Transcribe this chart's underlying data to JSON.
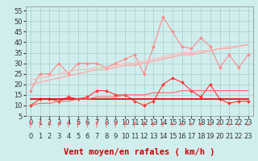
{
  "x": [
    0,
    1,
    2,
    3,
    4,
    5,
    6,
    7,
    8,
    9,
    10,
    11,
    12,
    13,
    14,
    15,
    16,
    17,
    18,
    19,
    20,
    21,
    22,
    23
  ],
  "series": [
    {
      "name": "rafales_main",
      "color": "#FF8888",
      "linewidth": 0.8,
      "marker": "D",
      "markersize": 2.0,
      "values": [
        17,
        25,
        25,
        30,
        25,
        30,
        30,
        30,
        28,
        30,
        32,
        34,
        25,
        38,
        52,
        45,
        38,
        37,
        42,
        38,
        28,
        34,
        28,
        34
      ]
    },
    {
      "name": "rafales_trend1",
      "color": "#FFBBBB",
      "linewidth": 1.0,
      "marker": null,
      "values": [
        22,
        23,
        24,
        25,
        26,
        27,
        27,
        28,
        28,
        29,
        30,
        30,
        31,
        32,
        33,
        34,
        35,
        35,
        36,
        36,
        37,
        38,
        38,
        39
      ]
    },
    {
      "name": "rafales_trend2",
      "color": "#FFAAAA",
      "linewidth": 1.0,
      "marker": null,
      "values": [
        20,
        21,
        22,
        23,
        24,
        25,
        26,
        27,
        27,
        28,
        29,
        29,
        30,
        31,
        32,
        33,
        34,
        34,
        35,
        36,
        37,
        37,
        38,
        39
      ]
    },
    {
      "name": "moyen_main",
      "color": "#FF3333",
      "linewidth": 0.8,
      "marker": "D",
      "markersize": 2.0,
      "values": [
        10,
        13,
        13,
        12,
        14,
        13,
        14,
        17,
        17,
        15,
        15,
        12,
        10,
        12,
        20,
        23,
        21,
        17,
        14,
        20,
        13,
        11,
        12,
        12
      ]
    },
    {
      "name": "moyen_flat",
      "color": "#DD0000",
      "linewidth": 1.2,
      "marker": null,
      "values": [
        13,
        13,
        13,
        13,
        13,
        13,
        13,
        13,
        13,
        13,
        13,
        13,
        13,
        13,
        13,
        13,
        13,
        13,
        13,
        13,
        13,
        13,
        13,
        13
      ]
    },
    {
      "name": "moyen_trend",
      "color": "#FF6666",
      "linewidth": 0.8,
      "marker": null,
      "values": [
        10,
        11,
        11,
        12,
        12,
        13,
        13,
        14,
        14,
        14,
        15,
        15,
        15,
        16,
        16,
        16,
        17,
        17,
        17,
        17,
        17,
        17,
        17,
        17
      ]
    }
  ],
  "arrow_angles": [
    90,
    80,
    90,
    70,
    90,
    80,
    90,
    80,
    90,
    80,
    75,
    70,
    65,
    60,
    55,
    50,
    45,
    40,
    40,
    35,
    35,
    35,
    35,
    30
  ],
  "xlabel": "Vent moyen/en rafales ( km/h )",
  "xlim": [
    -0.5,
    23.5
  ],
  "ylim": [
    5,
    57
  ],
  "yticks": [
    5,
    10,
    15,
    20,
    25,
    30,
    35,
    40,
    45,
    50,
    55
  ],
  "xticks": [
    0,
    1,
    2,
    3,
    4,
    5,
    6,
    7,
    8,
    9,
    10,
    11,
    12,
    13,
    14,
    15,
    16,
    17,
    18,
    19,
    20,
    21,
    22,
    23
  ],
  "bg_color": "#D0EEEE",
  "grid_color": "#AACCCC",
  "xlabel_color": "#CC0000",
  "xlabel_fontsize": 7.5,
  "tick_fontsize": 6,
  "arrow_color": "#FF6666"
}
